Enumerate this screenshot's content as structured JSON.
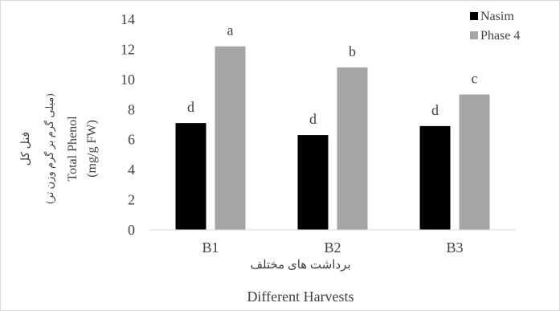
{
  "chart_data": {
    "type": "bar",
    "categories": [
      "B1",
      "B2",
      "B3"
    ],
    "series": [
      {
        "name": "Nasim",
        "values": [
          7.1,
          6.3,
          6.9
        ],
        "labels": [
          "d",
          "d",
          "d"
        ],
        "color": "#000000"
      },
      {
        "name": "Phase 4",
        "values": [
          12.2,
          10.8,
          9.0
        ],
        "labels": [
          "a",
          "b",
          "c"
        ],
        "color": "#a6a6a6"
      }
    ],
    "ylim": [
      0,
      14
    ],
    "yticks": [
      0,
      2,
      4,
      6,
      8,
      10,
      12,
      14
    ],
    "ylabel_lines": [
      "فنل کل",
      "(میلی گرم بر گرم وزن تر)",
      "Total Phenol",
      "(mg/g FW)"
    ],
    "xlabel_lines": [
      "برداشت های مختلف",
      "Different Harvests"
    ],
    "legend_position": "top-right",
    "grid": false
  }
}
